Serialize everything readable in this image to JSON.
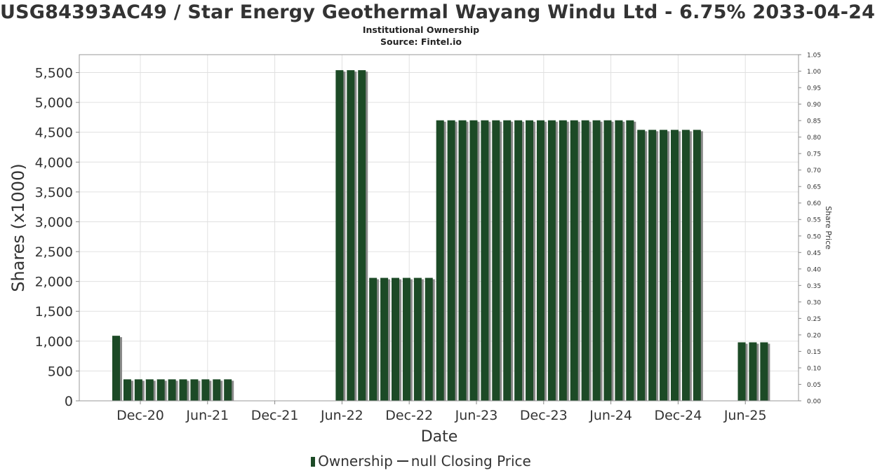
{
  "chart_data": {
    "type": "bar",
    "title": "USG84393AC49 / Star Energy Geothermal Wayang Windu Ltd - 6.75% 2033-04-24",
    "subtitle": "Institutional Ownership",
    "source": "Source: Fintel.io",
    "xlabel": "Date",
    "ylabel": "Shares (x1000)",
    "y2label": "Share Price",
    "ylim": [
      0,
      5800
    ],
    "yticks": [
      "0",
      "500",
      "1,000",
      "1,500",
      "2,000",
      "2,500",
      "3,000",
      "3,500",
      "4,000",
      "4,500",
      "5,000",
      "5,500"
    ],
    "y2lim": [
      0,
      1.05
    ],
    "y2ticks": [
      "0.00",
      "0.05",
      "0.10",
      "0.15",
      "0.20",
      "0.25",
      "0.30",
      "0.35",
      "0.40",
      "0.45",
      "0.50",
      "0.55",
      "0.60",
      "0.65",
      "0.70",
      "0.75",
      "0.80",
      "0.85",
      "0.90",
      "0.95",
      "1.00",
      "1.05"
    ],
    "xtick_labels": [
      "Dec-20",
      "Jun-21",
      "Dec-21",
      "Jun-22",
      "Dec-22",
      "Jun-23",
      "Dec-23",
      "Jun-24",
      "Dec-24",
      "Jun-25"
    ],
    "grid": true,
    "legend_position": "bottom",
    "series": [
      {
        "name": "Ownership",
        "color": "#1c4a26",
        "values": [
          1090,
          360,
          360,
          360,
          360,
          360,
          360,
          360,
          360,
          360,
          360,
          0,
          0,
          0,
          0,
          0,
          0,
          0,
          0,
          0,
          5540,
          5540,
          5540,
          2060,
          2060,
          2060,
          2060,
          2060,
          2060,
          4700,
          4700,
          4700,
          4700,
          4700,
          4700,
          4700,
          4700,
          4700,
          4700,
          4700,
          4700,
          4700,
          4700,
          4700,
          4700,
          4700,
          4700,
          4540,
          4540,
          4540,
          4540,
          4540,
          4540,
          0,
          0,
          0,
          980,
          980,
          980
        ]
      },
      {
        "name": "null Closing Price",
        "color": "#333333",
        "values": []
      }
    ]
  }
}
